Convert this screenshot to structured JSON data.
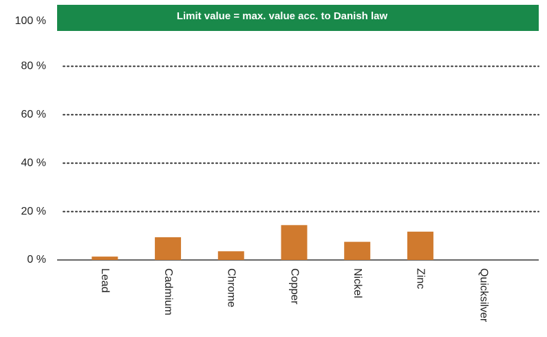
{
  "chart_data": {
    "type": "bar",
    "annotation": "Limit value = max. value acc. to Danish law",
    "categories": [
      "Lead",
      "Cadmium",
      "Chrome",
      "Copper",
      "Nickel",
      "Zinc",
      "Quicksilver"
    ],
    "values": [
      1.4,
      9.4,
      3.6,
      14.4,
      7.5,
      11.7,
      0
    ],
    "color": "#d07a2e",
    "band_color": "#19894a",
    "ylim": [
      0,
      100
    ],
    "yticks": [
      {
        "value": 0,
        "label": "0 %"
      },
      {
        "value": 20,
        "label": "20 %"
      },
      {
        "value": 40,
        "label": "40 %"
      },
      {
        "value": 60,
        "label": "60 %"
      },
      {
        "value": 80,
        "label": "80 %"
      },
      {
        "value": 100,
        "label": "100 %"
      }
    ],
    "grid": true
  }
}
